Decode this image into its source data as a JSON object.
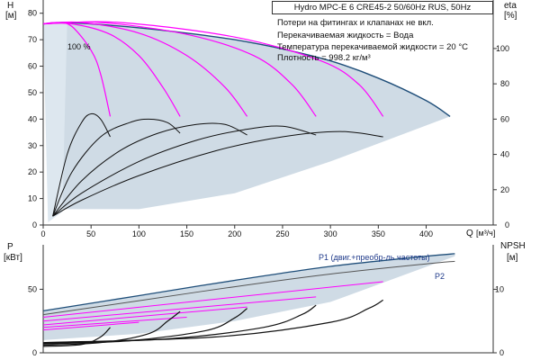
{
  "info": {
    "title": "Hydro MPC-E 6 CRE45-2 50/60Hz RUS, 50Hz",
    "lines": [
      "Потери на фитингах и клапанах не вкл.",
      "Перекачиваемая жидкость = Вода",
      "Температура перекачиваемой жидкости = 20 °C",
      "Плотность = 998.2 кг/м³"
    ]
  },
  "chart_data": [
    {
      "type": "line",
      "name": "head",
      "ylabel": "H",
      "yunit": "[м]",
      "y2label": "eta",
      "y2unit": "[%]",
      "xlabel": "Q",
      "xunit": "[м³/ч]",
      "xlim": [
        0,
        470
      ],
      "ylim": [
        0,
        85
      ],
      "y2lim": [
        0,
        127.5
      ],
      "x_ticks": [
        0,
        50,
        100,
        150,
        200,
        250,
        300,
        350,
        400
      ],
      "y_ticks": [
        0,
        10,
        20,
        30,
        40,
        50,
        60,
        70,
        80
      ],
      "y2_ticks": [
        0,
        20,
        40,
        60,
        80,
        100
      ],
      "annotation": "100 %",
      "max_curve": [
        [
          0,
          76
        ],
        [
          20,
          76.5
        ],
        [
          50,
          76
        ],
        [
          100,
          74.5
        ],
        [
          150,
          72.5
        ],
        [
          200,
          70
        ],
        [
          250,
          66.5
        ],
        [
          300,
          62
        ],
        [
          350,
          55.5
        ],
        [
          400,
          47
        ],
        [
          425,
          41
        ]
      ],
      "speed_curves": [
        [
          [
            0,
            76
          ],
          [
            15,
            76.5
          ],
          [
            30,
            75
          ],
          [
            50,
            66
          ],
          [
            60,
            57
          ],
          [
            70,
            41
          ]
        ],
        [
          [
            0,
            76
          ],
          [
            30,
            76
          ],
          [
            70,
            72
          ],
          [
            100,
            64
          ],
          [
            125,
            52
          ],
          [
            143,
            41
          ]
        ],
        [
          [
            0,
            76
          ],
          [
            40,
            76.5
          ],
          [
            100,
            72.5
          ],
          [
            150,
            64
          ],
          [
            190,
            52
          ],
          [
            213,
            41
          ]
        ],
        [
          [
            0,
            76
          ],
          [
            60,
            76.5
          ],
          [
            150,
            72
          ],
          [
            220,
            64
          ],
          [
            260,
            53
          ],
          [
            285,
            41
          ]
        ],
        [
          [
            0,
            76
          ],
          [
            80,
            76.5
          ],
          [
            200,
            71
          ],
          [
            290,
            62
          ],
          [
            330,
            53
          ],
          [
            355,
            41
          ]
        ]
      ],
      "eff_curves": [
        [
          [
            10,
            5
          ],
          [
            25,
            40
          ],
          [
            40,
            58
          ],
          [
            50,
            63
          ],
          [
            60,
            60
          ],
          [
            70,
            50
          ]
        ],
        [
          [
            10,
            5
          ],
          [
            30,
            30
          ],
          [
            60,
            50
          ],
          [
            90,
            58
          ],
          [
            110,
            60
          ],
          [
            130,
            58
          ],
          [
            143,
            52
          ]
        ],
        [
          [
            10,
            5
          ],
          [
            40,
            25
          ],
          [
            80,
            42
          ],
          [
            120,
            52
          ],
          [
            160,
            57
          ],
          [
            190,
            57
          ],
          [
            213,
            51
          ]
        ],
        [
          [
            10,
            5
          ],
          [
            40,
            18
          ],
          [
            100,
            36
          ],
          [
            160,
            48
          ],
          [
            210,
            54
          ],
          [
            250,
            56
          ],
          [
            285,
            51
          ]
        ],
        [
          [
            10,
            5
          ],
          [
            40,
            14
          ],
          [
            100,
            28
          ],
          [
            180,
            42
          ],
          [
            250,
            50
          ],
          [
            310,
            53
          ],
          [
            355,
            50
          ]
        ]
      ]
    },
    {
      "type": "line",
      "name": "power",
      "ylabel": "P",
      "yunit": "[кВт]",
      "y2label": "NPSH",
      "y2unit": "[м]",
      "xlim": [
        0,
        470
      ],
      "ylim": [
        0,
        85
      ],
      "y2lim": [
        0,
        17
      ],
      "y_ticks": [
        0,
        50
      ],
      "y2_ticks": [
        0,
        10
      ],
      "series": [
        {
          "name": "P1 (двиг.+преобр-ль частоты)",
          "points": [
            [
              0,
              33
            ],
            [
              100,
              45
            ],
            [
              200,
              57
            ],
            [
              300,
              68
            ],
            [
              400,
              76
            ],
            [
              430,
              78
            ]
          ]
        },
        {
          "name": "P2",
          "points": [
            [
              0,
              30
            ],
            [
              100,
              41
            ],
            [
              200,
              52
            ],
            [
              300,
              62
            ],
            [
              400,
              70
            ],
            [
              430,
              72
            ]
          ]
        }
      ],
      "npsh_curves": [
        [
          [
            0,
            1
          ],
          [
            40,
            1.3
          ],
          [
            60,
            2.5
          ],
          [
            70,
            4
          ]
        ],
        [
          [
            0,
            1.2
          ],
          [
            60,
            1.6
          ],
          [
            110,
            3
          ],
          [
            130,
            5
          ],
          [
            143,
            6.5
          ]
        ],
        [
          [
            0,
            1.4
          ],
          [
            90,
            1.9
          ],
          [
            170,
            3.5
          ],
          [
            200,
            5.5
          ],
          [
            213,
            7
          ]
        ],
        [
          [
            0,
            1.5
          ],
          [
            130,
            2.2
          ],
          [
            230,
            4
          ],
          [
            270,
            6
          ],
          [
            285,
            7.5
          ]
        ],
        [
          [
            0,
            1.6
          ],
          [
            180,
            2.5
          ],
          [
            300,
            4.8
          ],
          [
            340,
            7
          ],
          [
            355,
            8.3
          ]
        ]
      ]
    }
  ],
  "colors": {
    "max_curve": "#1f4e79",
    "speed": "#ff00ff",
    "eff": "#111111",
    "band": "#bfcfdc",
    "legend_text": "#1f3a8a"
  }
}
